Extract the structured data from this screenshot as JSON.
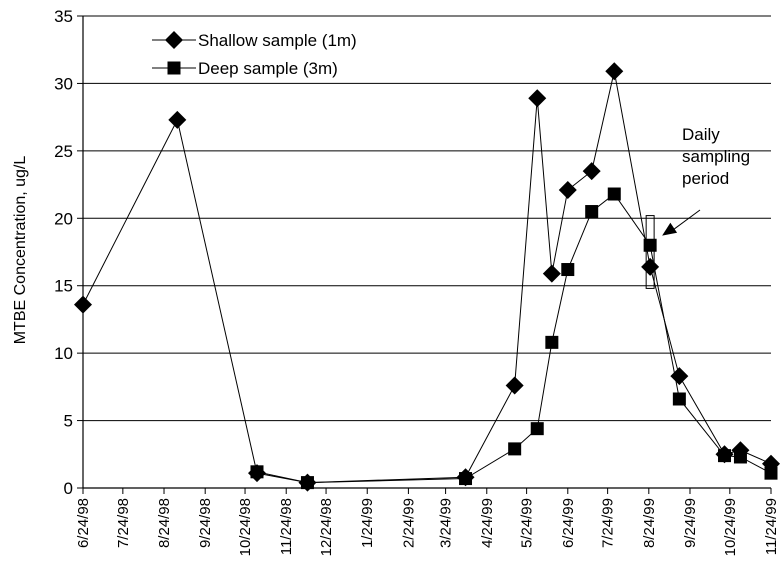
{
  "chart_data": {
    "type": "line",
    "title": "",
    "xlabel": "",
    "ylabel": "MTBE Concentration, ug/L",
    "ylim": [
      0,
      35
    ],
    "yticks": [
      0,
      5,
      10,
      15,
      20,
      25,
      30,
      35
    ],
    "xlim": [
      "1998-06-24",
      "1999-11-24"
    ],
    "xtick_labels": [
      "6/24/98",
      "7/24/98",
      "8/24/98",
      "9/24/98",
      "10/24/98",
      "11/24/98",
      "12/24/98",
      "1/24/99",
      "2/24/99",
      "3/24/99",
      "4/24/99",
      "5/24/99",
      "6/24/99",
      "7/24/99",
      "8/24/99",
      "9/24/99",
      "10/24/99",
      "11/24/99"
    ],
    "xtick_dates": [
      "1998-06-24",
      "1998-07-24",
      "1998-08-24",
      "1998-09-24",
      "1998-10-24",
      "1998-11-24",
      "1998-12-24",
      "1999-01-24",
      "1999-02-24",
      "1999-03-24",
      "1999-04-24",
      "1999-05-24",
      "1999-06-24",
      "1999-07-24",
      "1999-08-24",
      "1999-09-24",
      "1999-10-24",
      "1999-11-24"
    ],
    "grid": "horizontal",
    "legend_position": "top-left",
    "series": [
      {
        "name": "Shallow sample (1m)",
        "marker": "diamond",
        "points": [
          {
            "x": "1998-06-24",
            "y": 13.6
          },
          {
            "x": "1998-09-03",
            "y": 27.3
          },
          {
            "x": "1998-11-02",
            "y": 1.1
          },
          {
            "x": "1998-12-10",
            "y": 0.4
          },
          {
            "x": "1999-04-08",
            "y": 0.8
          },
          {
            "x": "1999-05-15",
            "y": 7.6
          },
          {
            "x": "1999-06-01",
            "y": 28.9
          },
          {
            "x": "1999-06-12",
            "y": 15.9
          },
          {
            "x": "1999-06-24",
            "y": 22.1
          },
          {
            "x": "1999-07-12",
            "y": 23.5
          },
          {
            "x": "1999-07-29",
            "y": 30.9
          },
          {
            "x": "1999-08-25",
            "y": 16.4
          },
          {
            "x": "1999-09-16",
            "y": 8.3
          },
          {
            "x": "1999-10-20",
            "y": 2.5
          },
          {
            "x": "1999-11-01",
            "y": 2.8
          },
          {
            "x": "1999-11-24",
            "y": 1.8
          }
        ]
      },
      {
        "name": "Deep sample (3m)",
        "marker": "square",
        "points": [
          {
            "x": "1998-11-02",
            "y": 1.2
          },
          {
            "x": "1998-12-10",
            "y": 0.4
          },
          {
            "x": "1999-04-08",
            "y": 0.7
          },
          {
            "x": "1999-05-15",
            "y": 2.9
          },
          {
            "x": "1999-06-01",
            "y": 4.4
          },
          {
            "x": "1999-06-12",
            "y": 10.8
          },
          {
            "x": "1999-06-24",
            "y": 16.2
          },
          {
            "x": "1999-07-12",
            "y": 20.5
          },
          {
            "x": "1999-07-29",
            "y": 21.8
          },
          {
            "x": "1999-08-25",
            "y": 18.0
          },
          {
            "x": "1999-09-16",
            "y": 6.6
          },
          {
            "x": "1999-10-20",
            "y": 2.4
          },
          {
            "x": "1999-11-01",
            "y": 2.3
          },
          {
            "x": "1999-11-24",
            "y": 1.1
          }
        ]
      }
    ],
    "annotations": [
      {
        "text_lines": [
          "Daily",
          "sampling",
          "period"
        ],
        "box_x": [
          "1999-08-22",
          "1999-08-28"
        ],
        "box_y": [
          14.8,
          20.2
        ]
      }
    ]
  }
}
